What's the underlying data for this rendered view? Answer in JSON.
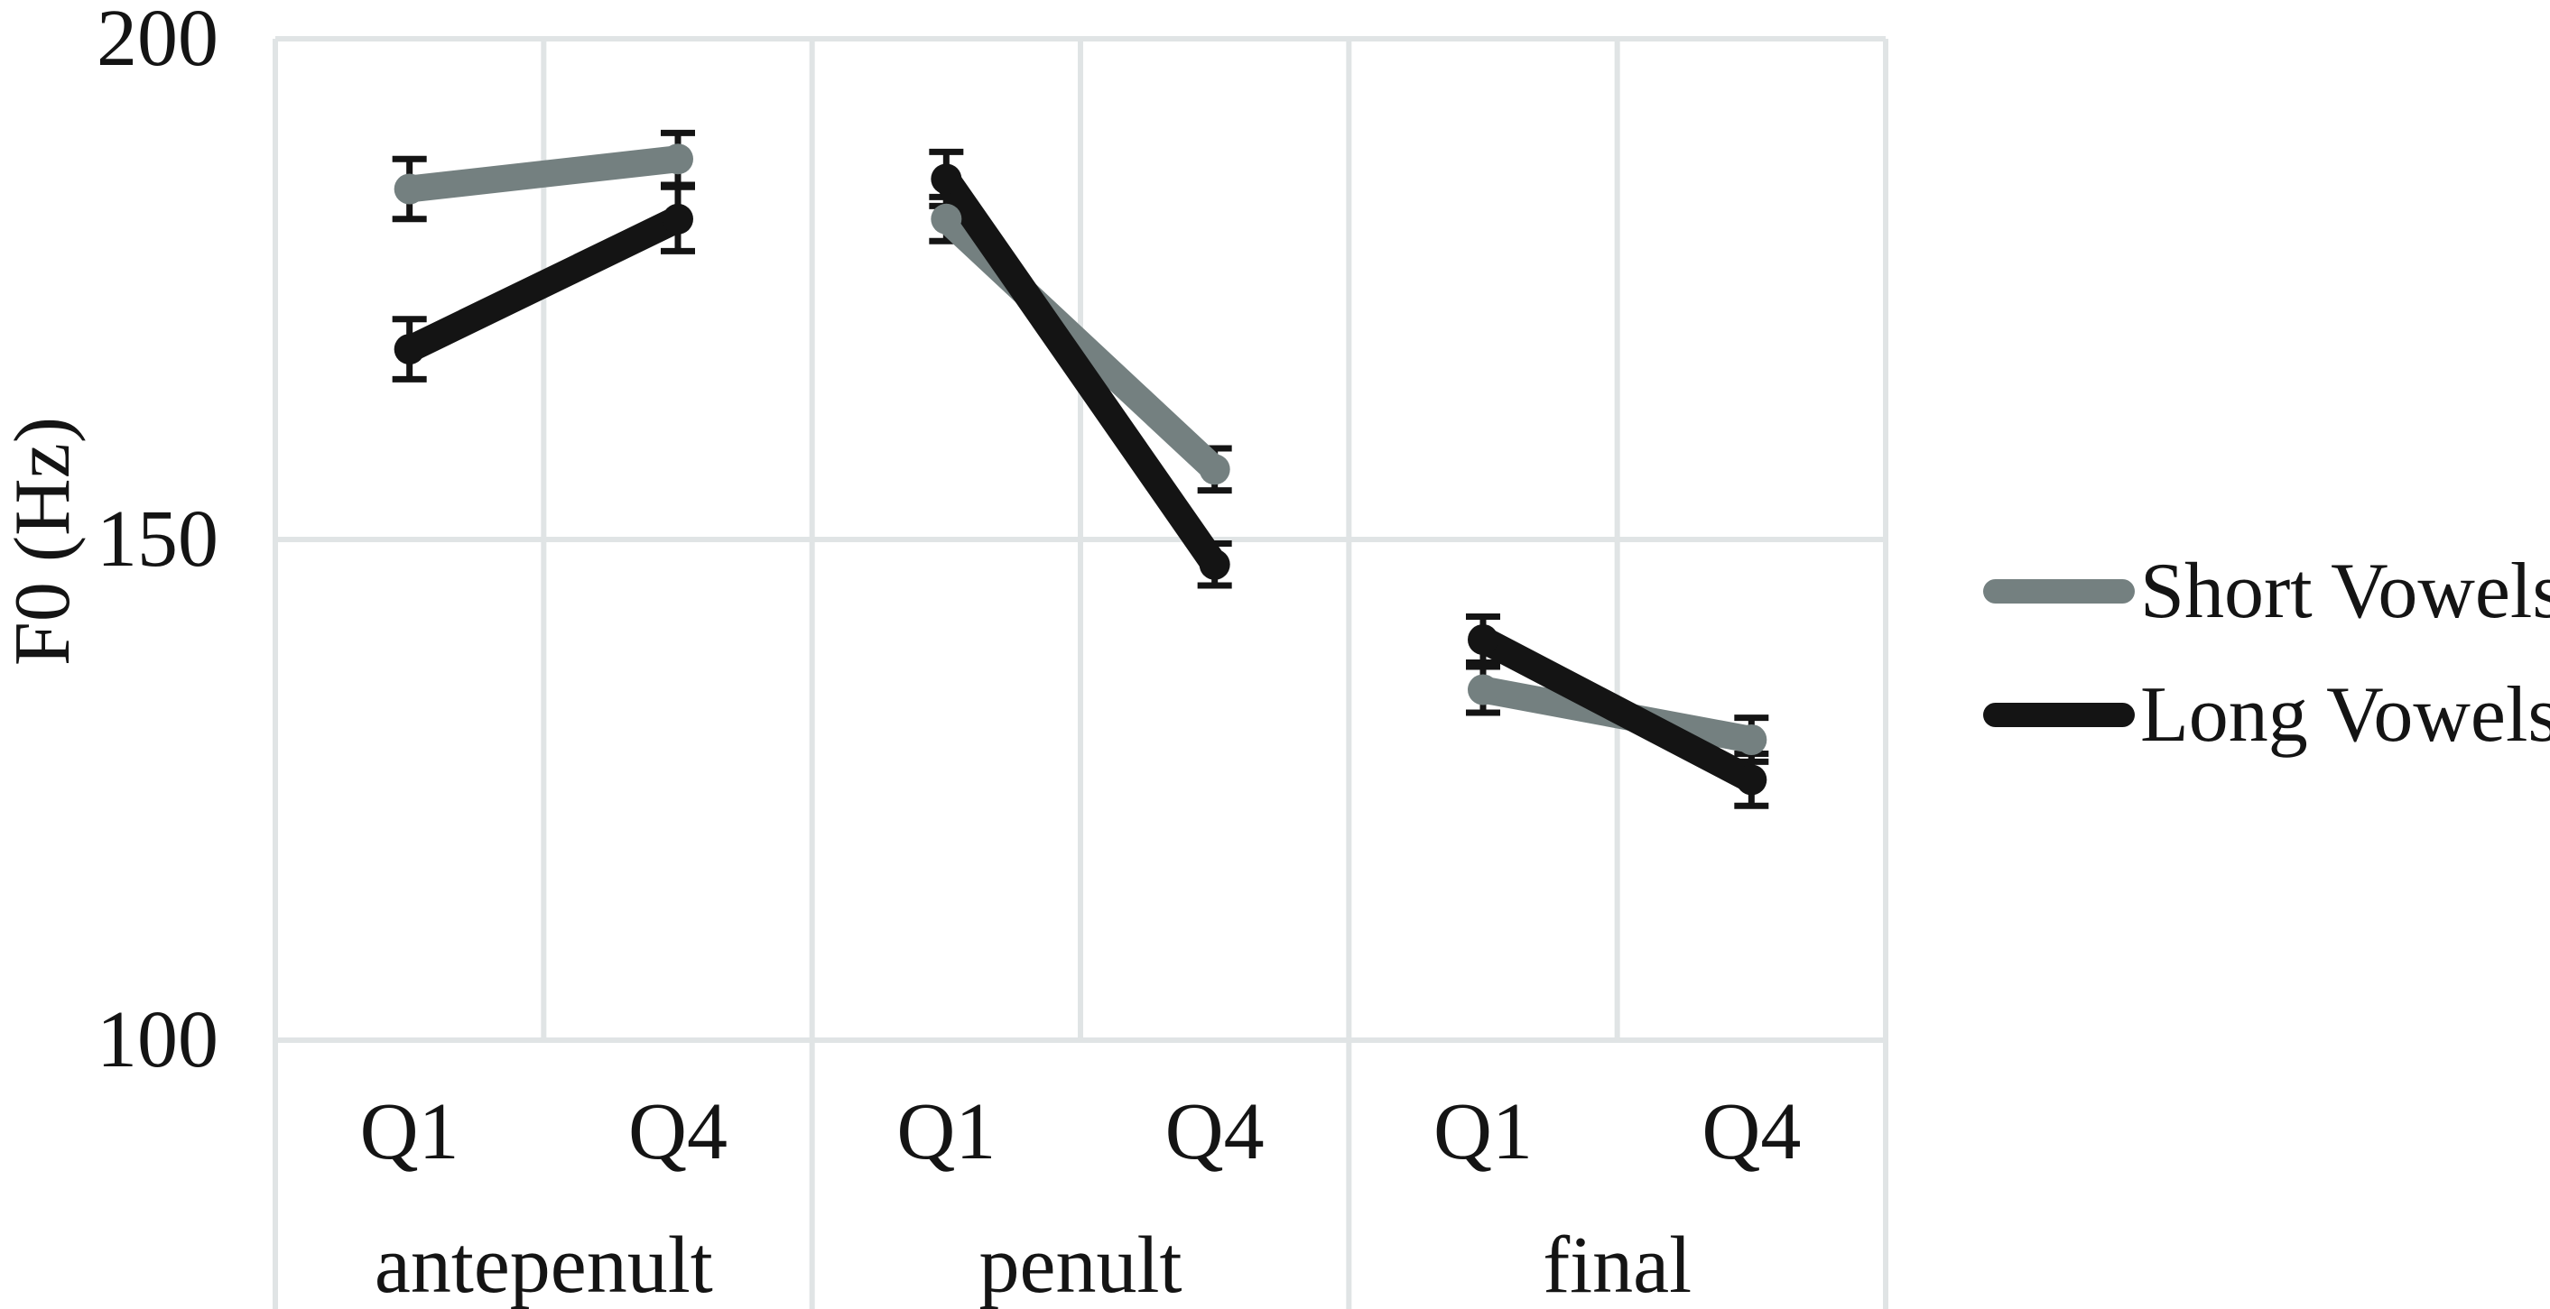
{
  "figure": {
    "background": "#ffffff"
  },
  "y_axis": {
    "title": "F0 (Hz)",
    "tick_labels": [
      "200",
      "150",
      "100"
    ]
  },
  "x_axis": {
    "sublabels": [
      "Q1",
      "Q4",
      "Q1",
      "Q4",
      "Q1",
      "Q4"
    ],
    "group_labels": [
      "antepenult",
      "penult",
      "final"
    ]
  },
  "legend": {
    "entries": [
      {
        "label": "Short Vowels",
        "color": "#748080"
      },
      {
        "label": "Long Vowels",
        "color": "#141414"
      }
    ]
  },
  "chart_data": {
    "type": "line",
    "title": "",
    "xlabel": "",
    "ylabel": "F0 (Hz)",
    "ylim": [
      100,
      200
    ],
    "yticks": [
      200,
      150,
      100
    ],
    "grid": true,
    "legend_position": "right",
    "groups": [
      "antepenult",
      "penult",
      "final"
    ],
    "x_sublabels": [
      "Q1",
      "Q4"
    ],
    "categories": [
      "antepenult Q1",
      "antepenult Q4",
      "penult Q1",
      "penult Q4",
      "final Q1",
      "final Q4"
    ],
    "series": [
      {
        "name": "Short Vowels",
        "color": "#748080",
        "values": [
          185,
          188,
          182,
          157,
          135,
          130
        ],
        "errors": [
          3.0,
          2.6,
          2.2,
          2.1,
          2.3,
          2.2
        ]
      },
      {
        "name": "Long Vowels",
        "color": "#141414",
        "values": [
          169,
          182,
          186,
          147.5,
          140,
          126
        ],
        "errors": [
          3.0,
          3.2,
          2.7,
          2.1,
          2.3,
          2.6
        ]
      }
    ],
    "error_bar_color": "#141414",
    "gridline_color": "#e0e4e5"
  }
}
